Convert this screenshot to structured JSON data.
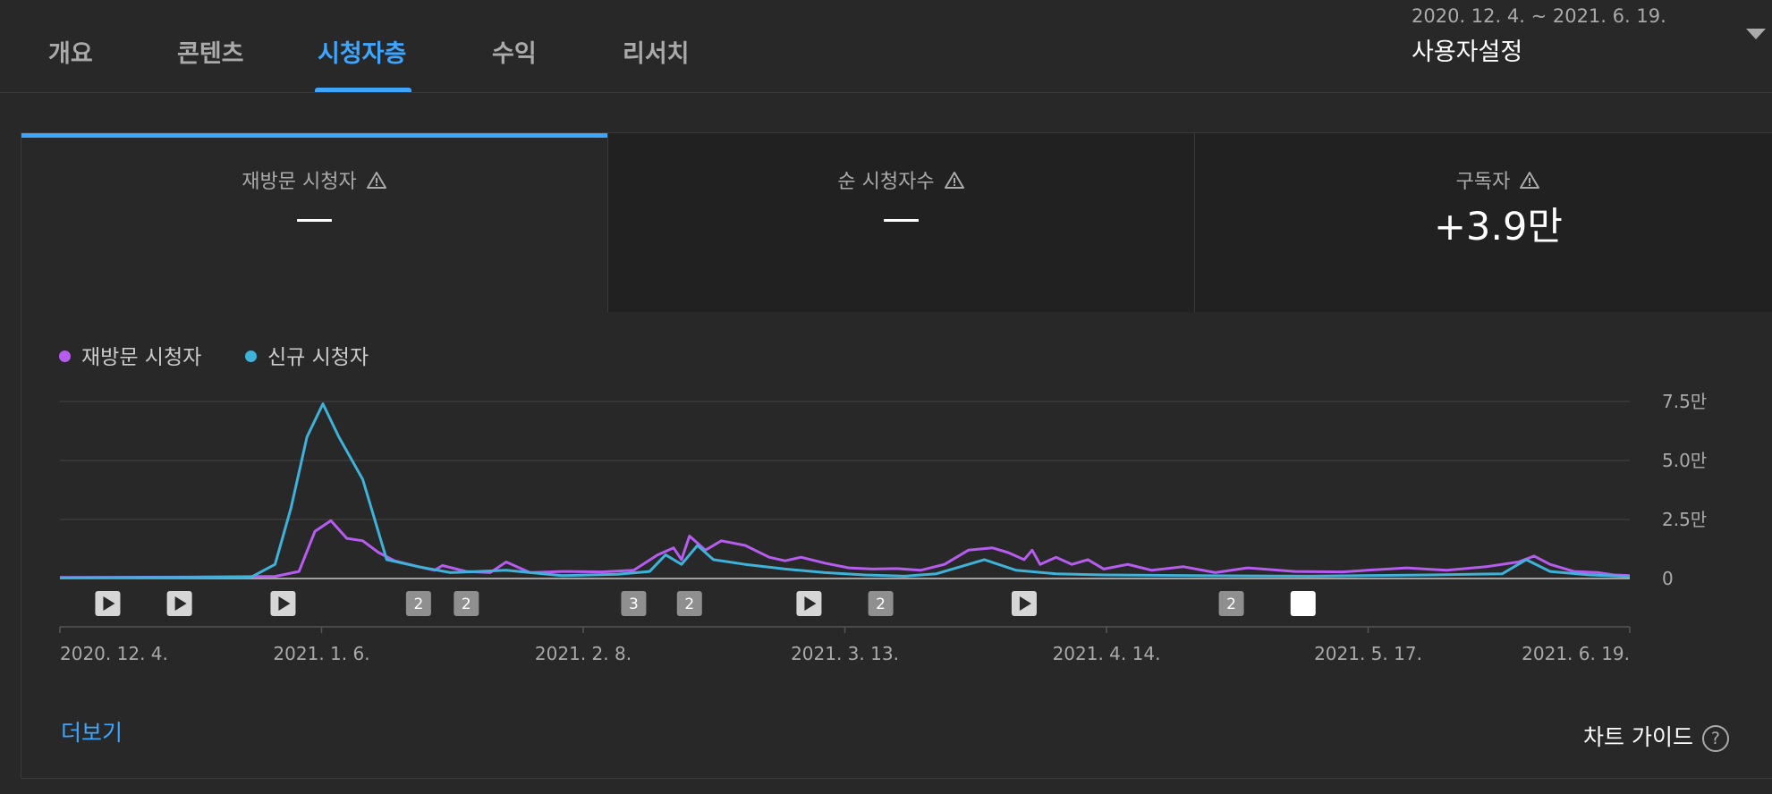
{
  "tabs": [
    {
      "label": "개요",
      "active": false
    },
    {
      "label": "콘텐츠",
      "active": false
    },
    {
      "label": "시청자층",
      "active": true
    },
    {
      "label": "수익",
      "active": false
    },
    {
      "label": "리서치",
      "active": false
    }
  ],
  "date_selector": {
    "range": "2020. 12. 4. ~ 2021. 6. 19.",
    "label": "사용자설정"
  },
  "metrics": [
    {
      "title": "재방문 시청자",
      "value": "—",
      "selected": true
    },
    {
      "title": "순 시청자수",
      "value": "—",
      "selected": false
    },
    {
      "title": "구독자",
      "value": "+3.9만",
      "selected": false
    }
  ],
  "legend": [
    {
      "label": "재방문 시청자",
      "color": "#b65cef"
    },
    {
      "label": "신규 시청자",
      "color": "#3fb2d9"
    }
  ],
  "more_link": "더보기",
  "chart_guide": "차트 가이드",
  "chart_guide_icon": "?",
  "chart_data": {
    "type": "line",
    "x_start": "2020-12-04",
    "x_end": "2021-06-19",
    "x_tick_labels": [
      "2020. 12. 4.",
      "2021. 1. 6.",
      "2021. 2. 8.",
      "2021. 3. 13.",
      "2021. 4. 14.",
      "2021. 5. 17.",
      "2021. 6. 19."
    ],
    "y_tick_labels": [
      "0",
      "2.5만",
      "5.0만",
      "7.5만"
    ],
    "ylim": [
      0,
      75000
    ],
    "grid": true,
    "legend_position": "top-left",
    "series": [
      {
        "name": "재방문 시청자",
        "color": "#b65cef",
        "points": [
          [
            "2020-12-04",
            500
          ],
          [
            "2020-12-20",
            600
          ],
          [
            "2020-12-31",
            900
          ],
          [
            "2021-01-03",
            3000
          ],
          [
            "2021-01-05",
            20000
          ],
          [
            "2021-01-07",
            24500
          ],
          [
            "2021-01-09",
            17000
          ],
          [
            "2021-01-11",
            16000
          ],
          [
            "2021-01-13",
            11000
          ],
          [
            "2021-01-15",
            7500
          ],
          [
            "2021-01-18",
            5000
          ],
          [
            "2021-01-20",
            3500
          ],
          [
            "2021-01-21",
            5500
          ],
          [
            "2021-01-24",
            3000
          ],
          [
            "2021-01-27",
            2500
          ],
          [
            "2021-01-29",
            7000
          ],
          [
            "2021-02-01",
            2500
          ],
          [
            "2021-02-05",
            3000
          ],
          [
            "2021-02-10",
            2800
          ],
          [
            "2021-02-14",
            3500
          ],
          [
            "2021-02-17",
            10000
          ],
          [
            "2021-02-19",
            13000
          ],
          [
            "2021-02-20",
            8000
          ],
          [
            "2021-02-21",
            18000
          ],
          [
            "2021-02-23",
            12000
          ],
          [
            "2021-02-25",
            16000
          ],
          [
            "2021-02-28",
            14000
          ],
          [
            "2021-03-03",
            9000
          ],
          [
            "2021-03-05",
            7500
          ],
          [
            "2021-03-07",
            9000
          ],
          [
            "2021-03-10",
            6500
          ],
          [
            "2021-03-13",
            4500
          ],
          [
            "2021-03-16",
            4000
          ],
          [
            "2021-03-19",
            4200
          ],
          [
            "2021-03-22",
            3500
          ],
          [
            "2021-03-25",
            6000
          ],
          [
            "2021-03-28",
            12000
          ],
          [
            "2021-03-31",
            13000
          ],
          [
            "2021-04-02",
            11000
          ],
          [
            "2021-04-04",
            8000
          ],
          [
            "2021-04-05",
            12000
          ],
          [
            "2021-04-06",
            6000
          ],
          [
            "2021-04-08",
            9000
          ],
          [
            "2021-04-10",
            6000
          ],
          [
            "2021-04-12",
            8000
          ],
          [
            "2021-04-14",
            4000
          ],
          [
            "2021-04-17",
            6000
          ],
          [
            "2021-04-20",
            3500
          ],
          [
            "2021-04-24",
            5000
          ],
          [
            "2021-04-28",
            2500
          ],
          [
            "2021-05-02",
            4500
          ],
          [
            "2021-05-08",
            3000
          ],
          [
            "2021-05-14",
            2800
          ],
          [
            "2021-05-17",
            3500
          ],
          [
            "2021-05-22",
            4500
          ],
          [
            "2021-05-27",
            3500
          ],
          [
            "2021-06-01",
            5000
          ],
          [
            "2021-06-05",
            7000
          ],
          [
            "2021-06-07",
            9500
          ],
          [
            "2021-06-09",
            6000
          ],
          [
            "2021-06-12",
            3000
          ],
          [
            "2021-06-15",
            2500
          ],
          [
            "2021-06-17",
            1500
          ],
          [
            "2021-06-19",
            1200
          ]
        ]
      },
      {
        "name": "신규 시청자",
        "color": "#3fb2d9",
        "points": [
          [
            "2020-12-04",
            300
          ],
          [
            "2020-12-20",
            500
          ],
          [
            "2020-12-28",
            600
          ],
          [
            "2020-12-31",
            6000
          ],
          [
            "2021-01-02",
            30000
          ],
          [
            "2021-01-04",
            60000
          ],
          [
            "2021-01-06",
            74000
          ],
          [
            "2021-01-08",
            60000
          ],
          [
            "2021-01-10",
            48000
          ],
          [
            "2021-01-11",
            42000
          ],
          [
            "2021-01-14",
            8000
          ],
          [
            "2021-01-18",
            5000
          ],
          [
            "2021-01-22",
            2500
          ],
          [
            "2021-01-29",
            3500
          ],
          [
            "2021-02-05",
            1200
          ],
          [
            "2021-02-12",
            1800
          ],
          [
            "2021-02-16",
            3000
          ],
          [
            "2021-02-18",
            10000
          ],
          [
            "2021-02-20",
            6000
          ],
          [
            "2021-02-22",
            14000
          ],
          [
            "2021-02-24",
            8000
          ],
          [
            "2021-02-28",
            6000
          ],
          [
            "2021-03-05",
            4000
          ],
          [
            "2021-03-10",
            2500
          ],
          [
            "2021-03-15",
            1500
          ],
          [
            "2021-03-20",
            1000
          ],
          [
            "2021-03-24",
            2000
          ],
          [
            "2021-03-27",
            5000
          ],
          [
            "2021-03-30",
            8000
          ],
          [
            "2021-04-03",
            3500
          ],
          [
            "2021-04-08",
            2000
          ],
          [
            "2021-04-14",
            1500
          ],
          [
            "2021-04-25",
            1200
          ],
          [
            "2021-05-10",
            1000
          ],
          [
            "2021-05-25",
            1500
          ],
          [
            "2021-06-03",
            2000
          ],
          [
            "2021-06-06",
            8000
          ],
          [
            "2021-06-09",
            3000
          ],
          [
            "2021-06-14",
            1500
          ],
          [
            "2021-06-19",
            800
          ]
        ]
      }
    ],
    "event_markers": [
      {
        "date": "2020-12-10",
        "kind": "video",
        "label": ""
      },
      {
        "date": "2020-12-19",
        "kind": "video",
        "label": ""
      },
      {
        "date": "2021-01-01",
        "kind": "video",
        "label": ""
      },
      {
        "date": "2021-01-18",
        "kind": "count",
        "label": "2"
      },
      {
        "date": "2021-01-24",
        "kind": "count",
        "label": "2"
      },
      {
        "date": "2021-02-14",
        "kind": "count",
        "label": "3"
      },
      {
        "date": "2021-02-21",
        "kind": "count",
        "label": "2"
      },
      {
        "date": "2021-03-08",
        "kind": "video",
        "label": ""
      },
      {
        "date": "2021-03-17",
        "kind": "count",
        "label": "2"
      },
      {
        "date": "2021-04-04",
        "kind": "video",
        "label": ""
      },
      {
        "date": "2021-04-30",
        "kind": "count",
        "label": "2"
      },
      {
        "date": "2021-05-09",
        "kind": "blank",
        "label": ""
      }
    ]
  }
}
